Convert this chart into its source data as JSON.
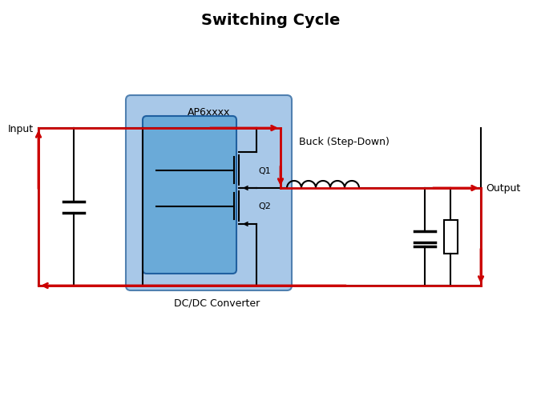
{
  "title": "Switching Cycle",
  "title_fontsize": 14,
  "title_fontweight": "bold",
  "bg_color": "#ffffff",
  "blue_box_color": "#a8c8e8",
  "blue_box_edge": "#5080b0",
  "inner_box_color": "#6aaad8",
  "inner_box_edge": "#2060a0",
  "wire_color": "#000000",
  "red_color": "#cc0000",
  "label_ap6xxxx": "AP6xxxx",
  "label_q1": "Q1",
  "label_q2": "Q2",
  "label_input": "Input",
  "label_output": "Output",
  "label_buck": "Buck (Step-Down)",
  "label_dcdc": "DC/DC Converter",
  "text_fontsize": 9,
  "small_fontsize": 8
}
